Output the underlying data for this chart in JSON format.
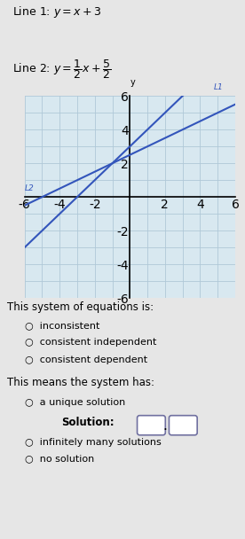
{
  "line1_slope": 1,
  "line1_intercept": 3,
  "line2_slope": 0.5,
  "line2_intercept": 2.5,
  "graph_line_color": "#3355bb",
  "xlim": [
    -6,
    6
  ],
  "ylim": [
    -6,
    6
  ],
  "grid_color": "#b0c8d8",
  "bg_color": "#d8e8f0",
  "L1_tag": "L1",
  "L2_tag": "L2",
  "line1_text": "Line 1: $y=x+3$",
  "line2_text_pre": "Line 2: $y=\\dfrac{1}{2}x+\\dfrac{5}{2}$",
  "section_title1": "This system of equations is:",
  "options1": [
    "inconsistent",
    "consistent independent",
    "consistent dependent"
  ],
  "section_title2": "This means the system has:",
  "option_unique": "a unique solution",
  "solution_label": "Solution:",
  "options_bottom": [
    "infinitely many solutions",
    "no solution"
  ],
  "overall_bg": "#e6e6e6"
}
